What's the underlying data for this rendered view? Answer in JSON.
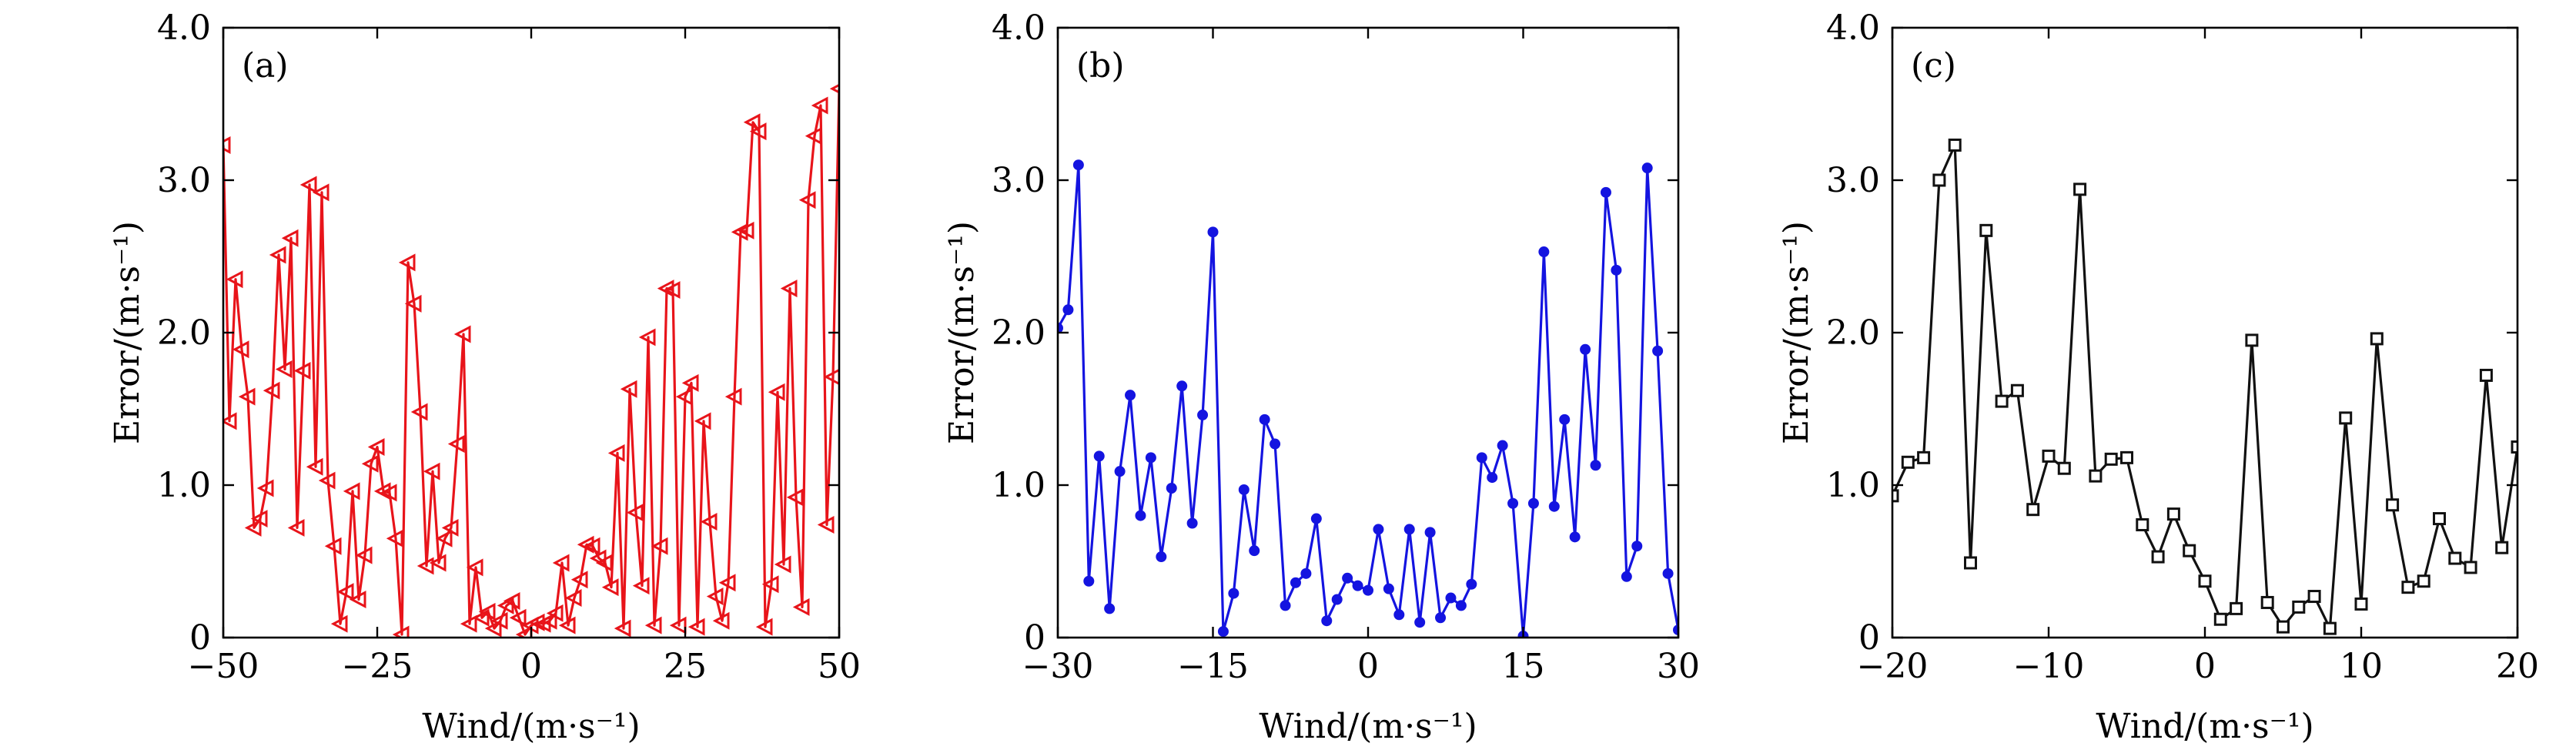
{
  "figure_title": "",
  "chart_data": [
    {
      "type": "line",
      "panel_label": "(a)",
      "xlabel": "Wind/(m·s⁻¹)",
      "ylabel": "Error/(m·s⁻¹)",
      "xlim": [
        -50,
        50
      ],
      "ylim": [
        0,
        4.0
      ],
      "xticks": [
        -50,
        -25,
        0,
        25,
        50
      ],
      "xtick_labels": [
        "−50",
        "−25",
        "0",
        "25",
        "50"
      ],
      "yticks": [
        0,
        1.0,
        2.0,
        3.0,
        4.0
      ],
      "ytick_labels": [
        "0",
        "1.0",
        "2.0",
        "3.0",
        "4.0"
      ],
      "grid": false,
      "legend": "none",
      "series": [
        {
          "name": "series-a",
          "color": "#e8141a",
          "marker": "triangle-left",
          "x": [
            -50,
            -49,
            -48,
            -47,
            -46,
            -45,
            -44,
            -43,
            -42,
            -41,
            -40,
            -39,
            -38,
            -37,
            -36,
            -35,
            -34,
            -33,
            -32,
            -31,
            -30,
            -29,
            -28,
            -27,
            -26,
            -25,
            -24,
            -23,
            -22,
            -21,
            -20,
            -19,
            -18,
            -17,
            -16,
            -15,
            -14,
            -13,
            -12,
            -11,
            -10,
            -9,
            -8,
            -7,
            -6,
            -5,
            -4,
            -3,
            -2,
            -1,
            0,
            1,
            2,
            3,
            4,
            5,
            6,
            7,
            8,
            9,
            10,
            11,
            12,
            13,
            14,
            15,
            16,
            17,
            18,
            19,
            20,
            21,
            22,
            23,
            24,
            25,
            26,
            27,
            28,
            29,
            30,
            31,
            32,
            33,
            34,
            35,
            36,
            37,
            38,
            39,
            40,
            41,
            42,
            43,
            44,
            45,
            46,
            47,
            48,
            49,
            50
          ],
          "y": [
            3.23,
            1.42,
            2.35,
            1.89,
            1.58,
            0.72,
            0.78,
            0.98,
            1.62,
            2.51,
            1.76,
            2.62,
            0.72,
            1.75,
            2.97,
            1.12,
            2.92,
            1.03,
            0.6,
            0.09,
            0.3,
            0.96,
            0.25,
            0.54,
            1.14,
            1.25,
            0.96,
            0.95,
            0.65,
            0.02,
            2.46,
            2.19,
            1.48,
            0.47,
            1.09,
            0.49,
            0.65,
            0.72,
            1.27,
            1.99,
            0.09,
            0.46,
            0.13,
            0.17,
            0.06,
            0.11,
            0.21,
            0.24,
            0.13,
            0.02,
            0.08,
            0.1,
            0.09,
            0.11,
            0.16,
            0.49,
            0.08,
            0.26,
            0.38,
            0.61,
            0.6,
            0.52,
            0.49,
            0.33,
            1.21,
            0.06,
            1.63,
            0.82,
            0.34,
            1.97,
            0.08,
            0.6,
            2.29,
            2.28,
            0.08,
            1.58,
            1.67,
            0.07,
            1.42,
            0.76,
            0.27,
            0.11,
            0.36,
            1.58,
            2.66,
            2.67,
            3.38,
            3.32,
            0.07,
            0.35,
            1.61,
            0.48,
            2.29,
            0.92,
            0.2,
            2.87,
            3.29,
            3.49,
            0.74,
            1.71,
            3.6
          ]
        }
      ]
    },
    {
      "type": "line",
      "panel_label": "(b)",
      "xlabel": "Wind/(m·s⁻¹)",
      "ylabel": "Error/(m·s⁻¹)",
      "xlim": [
        -30,
        30
      ],
      "ylim": [
        0,
        4.0
      ],
      "xticks": [
        -30,
        -15,
        0,
        15,
        30
      ],
      "xtick_labels": [
        "−30",
        "−15",
        "0",
        "15",
        "30"
      ],
      "yticks": [
        0,
        1.0,
        2.0,
        3.0,
        4.0
      ],
      "ytick_labels": [
        "0",
        "1.0",
        "2.0",
        "3.0",
        "4.0"
      ],
      "grid": false,
      "legend": "none",
      "series": [
        {
          "name": "series-b",
          "color": "#1414e0",
          "marker": "circle",
          "x": [
            -30,
            -29,
            -28,
            -27,
            -26,
            -25,
            -24,
            -23,
            -22,
            -21,
            -20,
            -19,
            -18,
            -17,
            -16,
            -15,
            -14,
            -13,
            -12,
            -11,
            -10,
            -9,
            -8,
            -7,
            -6,
            -5,
            -4,
            -3,
            -2,
            -1,
            0,
            1,
            2,
            3,
            4,
            5,
            6,
            7,
            8,
            9,
            10,
            11,
            12,
            13,
            14,
            15,
            16,
            17,
            18,
            19,
            20,
            21,
            22,
            23,
            24,
            25,
            26,
            27,
            28,
            29,
            30
          ],
          "y": [
            2.03,
            2.15,
            3.1,
            0.37,
            1.19,
            0.19,
            1.09,
            1.59,
            0.8,
            1.18,
            0.53,
            0.98,
            1.65,
            0.75,
            1.46,
            2.66,
            0.04,
            0.29,
            0.97,
            0.57,
            1.43,
            1.27,
            0.21,
            0.36,
            0.42,
            0.78,
            0.11,
            0.25,
            0.39,
            0.34,
            0.31,
            0.71,
            0.32,
            0.15,
            0.71,
            0.1,
            0.69,
            0.13,
            0.26,
            0.21,
            0.35,
            1.18,
            1.05,
            1.26,
            0.88,
            0.01,
            0.88,
            2.53,
            0.86,
            1.43,
            0.66,
            1.89,
            1.13,
            2.92,
            2.41,
            0.4,
            0.6,
            3.08,
            1.88,
            0.42,
            0.05
          ]
        }
      ]
    },
    {
      "type": "line",
      "panel_label": "(c)",
      "xlabel": "Wind/(m·s⁻¹)",
      "ylabel": "Error/(m·s⁻¹)",
      "xlim": [
        -20,
        20
      ],
      "ylim": [
        0,
        4.0
      ],
      "xticks": [
        -20,
        -10,
        0,
        10,
        20
      ],
      "xtick_labels": [
        "−20",
        "−10",
        "0",
        "10",
        "20"
      ],
      "yticks": [
        0,
        1.0,
        2.0,
        3.0,
        4.0
      ],
      "ytick_labels": [
        "0",
        "1.0",
        "2.0",
        "3.0",
        "4.0"
      ],
      "grid": false,
      "legend": "none",
      "series": [
        {
          "name": "series-c",
          "color": "#111111",
          "marker": "square",
          "x": [
            -20,
            -19,
            -18,
            -17,
            -16,
            -15,
            -14,
            -13,
            -12,
            -11,
            -10,
            -9,
            -8,
            -7,
            -6,
            -5,
            -4,
            -3,
            -2,
            -1,
            0,
            1,
            2,
            3,
            4,
            5,
            6,
            7,
            8,
            9,
            10,
            11,
            12,
            13,
            14,
            15,
            16,
            17,
            18,
            19,
            20
          ],
          "y": [
            0.93,
            1.15,
            1.18,
            3.0,
            3.23,
            0.49,
            2.67,
            1.55,
            1.62,
            0.84,
            1.19,
            1.11,
            2.94,
            1.06,
            1.17,
            1.18,
            0.74,
            0.53,
            0.81,
            0.57,
            0.37,
            0.12,
            0.19,
            1.95,
            0.23,
            0.07,
            0.2,
            0.27,
            0.06,
            1.44,
            0.22,
            1.96,
            0.87,
            0.33,
            0.37,
            0.78,
            0.52,
            0.46,
            1.72,
            0.59,
            1.25
          ]
        }
      ]
    }
  ]
}
